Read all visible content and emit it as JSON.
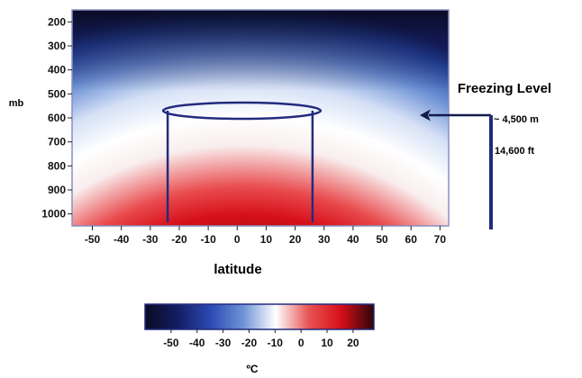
{
  "chart_data": {
    "type": "heatmap",
    "title": "",
    "xlabel": "latitude",
    "ylabel": "mb",
    "x_ticks": [
      -50,
      -40,
      -30,
      -20,
      -10,
      0,
      10,
      20,
      30,
      40,
      50,
      60,
      70
    ],
    "y_ticks": [
      200,
      300,
      400,
      500,
      600,
      700,
      800,
      900,
      1000
    ],
    "xlim": [
      -57,
      73
    ],
    "ylim": [
      1050,
      150
    ],
    "y_axis_inverted": true,
    "grid": false,
    "colorbar": {
      "label": "ºC",
      "ticks": [
        -50,
        -40,
        -30,
        -20,
        -10,
        0,
        10,
        20
      ],
      "range": [
        -60,
        28
      ],
      "colors": [
        "#0b0a22",
        "#141d63",
        "#2b49b2",
        "#6f93d6",
        "#ffffff",
        "#e85454",
        "#d60f1a",
        "#2a0507"
      ]
    },
    "overlay_cylinder": {
      "left_latitude": -24,
      "right_latitude": 26,
      "top_pressure_mb": 570,
      "bottom_pressure_mb": 1050,
      "color": "#232b7e"
    },
    "annotation": {
      "label": "Freezing Level",
      "pressure_mb": 570,
      "height_m": "~ 4,500 m",
      "height_ft": "14,600 ft"
    }
  }
}
